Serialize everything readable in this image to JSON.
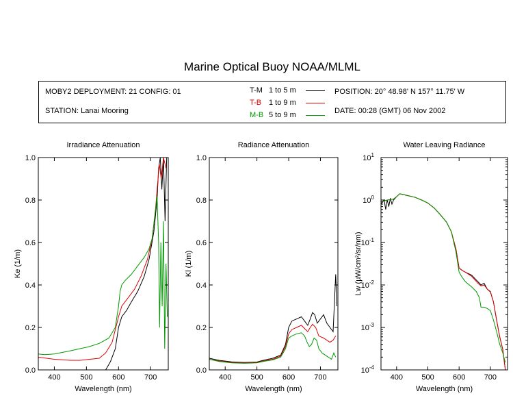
{
  "title": "Marine Optical Buoy NOAA/MLML",
  "info": {
    "deployment": "MOBY2 DEPLOYMENT: 21 CONFIG: 01",
    "station": "STATION: Lanai Mooring",
    "position": "POSITION: 20° 48.98' N   157° 11.75' W",
    "date": "DATE: 00:28 (GMT) 06 Nov 2002",
    "legend": [
      {
        "label": "T-M",
        "range": "1 to 5  m",
        "color": "#000000"
      },
      {
        "label": "T-B",
        "range": "1 to 9  m",
        "color": "#dd0000"
      },
      {
        "label": "M-B",
        "range": "5 to 9  m",
        "color": "#009900"
      }
    ]
  },
  "chart_data": [
    {
      "type": "line",
      "title": "Irradiance Attenuation",
      "xlabel": "Wavelength (nm)",
      "ylabel": "Ke  (1/m)",
      "xlim": [
        350,
        755
      ],
      "ylim": [
        0,
        1
      ],
      "xticks": [
        "400",
        "500",
        "600",
        "700"
      ],
      "yticks": [
        "0.0",
        "0.2",
        "0.4",
        "0.6",
        "0.8",
        "1.0"
      ],
      "series": [
        {
          "name": "T-M",
          "color": "#000000",
          "points": [
            [
              560,
              0
            ],
            [
              575,
              0.04
            ],
            [
              590,
              0.1
            ],
            [
              600,
              0.2
            ],
            [
              610,
              0.25
            ],
            [
              625,
              0.28
            ],
            [
              640,
              0.32
            ],
            [
              660,
              0.37
            ],
            [
              680,
              0.44
            ],
            [
              695,
              0.52
            ],
            [
              710,
              0.65
            ],
            [
              720,
              0.8
            ],
            [
              725,
              0.95
            ],
            [
              730,
              1.0
            ],
            [
              735,
              0.85
            ],
            [
              740,
              1.0
            ],
            [
              745,
              0.7
            ],
            [
              750,
              1.0
            ]
          ]
        },
        {
          "name": "T-B",
          "color": "#dd0000",
          "points": [
            [
              350,
              0.06
            ],
            [
              400,
              0.05
            ],
            [
              450,
              0.045
            ],
            [
              480,
              0.045
            ],
            [
              510,
              0.05
            ],
            [
              540,
              0.055
            ],
            [
              560,
              0.08
            ],
            [
              580,
              0.13
            ],
            [
              600,
              0.25
            ],
            [
              610,
              0.3
            ],
            [
              630,
              0.34
            ],
            [
              650,
              0.38
            ],
            [
              670,
              0.44
            ],
            [
              690,
              0.52
            ],
            [
              705,
              0.62
            ],
            [
              715,
              0.75
            ],
            [
              722,
              0.88
            ],
            [
              727,
              0.97
            ],
            [
              733,
              0.9
            ],
            [
              740,
              1.0
            ],
            [
              748,
              0.95
            ]
          ]
        },
        {
          "name": "M-B",
          "color": "#009900",
          "points": [
            [
              350,
              0.075
            ],
            [
              370,
              0.072
            ],
            [
              400,
              0.075
            ],
            [
              450,
              0.09
            ],
            [
              480,
              0.1
            ],
            [
              510,
              0.11
            ],
            [
              540,
              0.125
            ],
            [
              570,
              0.15
            ],
            [
              590,
              0.2
            ],
            [
              600,
              0.3
            ],
            [
              605,
              0.37
            ],
            [
              610,
              0.4
            ],
            [
              620,
              0.42
            ],
            [
              640,
              0.45
            ],
            [
              660,
              0.49
            ],
            [
              680,
              0.53
            ],
            [
              695,
              0.57
            ],
            [
              705,
              0.62
            ],
            [
              715,
              0.75
            ],
            [
              720,
              0.82
            ],
            [
              725,
              0.6
            ],
            [
              728,
              0.2
            ],
            [
              732,
              0.6
            ],
            [
              736,
              0.3
            ],
            [
              740,
              0.7
            ],
            [
              744,
              0.1
            ],
            [
              748,
              0.5
            ],
            [
              752,
              0.25
            ]
          ]
        }
      ]
    },
    {
      "type": "line",
      "title": "Radiance Attenuation",
      "xlabel": "Wavelength (nm)",
      "ylabel": "Kl  (1/m)",
      "xlim": [
        350,
        755
      ],
      "ylim": [
        0,
        1
      ],
      "xticks": [
        "400",
        "500",
        "600",
        "700"
      ],
      "yticks": [
        "0.0",
        "0.2",
        "0.4",
        "0.6",
        "0.8",
        "1.0"
      ],
      "series": [
        {
          "name": "T-M",
          "color": "#000000",
          "points": [
            [
              350,
              0.055
            ],
            [
              380,
              0.045
            ],
            [
              420,
              0.038
            ],
            [
              460,
              0.035
            ],
            [
              500,
              0.037
            ],
            [
              520,
              0.045
            ],
            [
              550,
              0.055
            ],
            [
              575,
              0.07
            ],
            [
              590,
              0.12
            ],
            [
              600,
              0.2
            ],
            [
              610,
              0.23
            ],
            [
              625,
              0.24
            ],
            [
              640,
              0.25
            ],
            [
              650,
              0.23
            ],
            [
              660,
              0.21
            ],
            [
              668,
              0.24
            ],
            [
              675,
              0.27
            ],
            [
              682,
              0.26
            ],
            [
              690,
              0.22
            ],
            [
              700,
              0.24
            ],
            [
              710,
              0.26
            ],
            [
              720,
              0.22
            ],
            [
              730,
              0.2
            ],
            [
              740,
              0.18
            ],
            [
              745,
              0.35
            ],
            [
              748,
              0.45
            ],
            [
              752,
              0.3
            ]
          ]
        },
        {
          "name": "T-B",
          "color": "#dd0000",
          "points": [
            [
              350,
              0.05
            ],
            [
              380,
              0.042
            ],
            [
              420,
              0.035
            ],
            [
              460,
              0.033
            ],
            [
              500,
              0.035
            ],
            [
              520,
              0.042
            ],
            [
              550,
              0.05
            ],
            [
              575,
              0.065
            ],
            [
              590,
              0.11
            ],
            [
              600,
              0.17
            ],
            [
              610,
              0.19
            ],
            [
              625,
              0.2
            ],
            [
              640,
              0.21
            ],
            [
              650,
              0.195
            ],
            [
              660,
              0.18
            ],
            [
              668,
              0.2
            ],
            [
              675,
              0.215
            ],
            [
              685,
              0.2
            ],
            [
              695,
              0.16
            ],
            [
              710,
              0.15
            ],
            [
              720,
              0.14
            ],
            [
              730,
              0.13
            ],
            [
              740,
              0.14
            ],
            [
              748,
              0.16
            ]
          ]
        },
        {
          "name": "M-B",
          "color": "#009900",
          "points": [
            [
              350,
              0.05
            ],
            [
              380,
              0.04
            ],
            [
              420,
              0.033
            ],
            [
              460,
              0.031
            ],
            [
              500,
              0.033
            ],
            [
              520,
              0.04
            ],
            [
              550,
              0.047
            ],
            [
              575,
              0.06
            ],
            [
              590,
              0.1
            ],
            [
              600,
              0.15
            ],
            [
              610,
              0.16
            ],
            [
              625,
              0.17
            ],
            [
              640,
              0.175
            ],
            [
              650,
              0.16
            ],
            [
              658,
              0.13
            ],
            [
              665,
              0.11
            ],
            [
              672,
              0.12
            ],
            [
              680,
              0.15
            ],
            [
              688,
              0.14
            ],
            [
              695,
              0.1
            ],
            [
              705,
              0.08
            ],
            [
              715,
              0.07
            ],
            [
              725,
              0.06
            ],
            [
              735,
              0.05
            ],
            [
              742,
              0.08
            ],
            [
              748,
              0.06
            ]
          ]
        }
      ]
    },
    {
      "type": "line",
      "title": "Water Leaving Radiance",
      "xlabel": "Wavelength (nm)",
      "ylabel": "Lw  (µW/cm²/sr/nm)",
      "yscale": "log",
      "xlim": [
        350,
        755
      ],
      "ylim": [
        0.0001,
        10
      ],
      "xticks": [
        "400",
        "500",
        "600",
        "700"
      ],
      "ytick_values": [
        0.0001,
        0.001,
        0.01,
        0.1,
        1,
        10
      ],
      "ytick_exponents": [
        "-4",
        "-3",
        "-2",
        "-1",
        "0",
        "1"
      ],
      "series": [
        {
          "name": "T-M",
          "color": "#000000",
          "points": [
            [
              350,
              0.8
            ],
            [
              360,
              1.0
            ],
            [
              365,
              0.6
            ],
            [
              370,
              1.0
            ],
            [
              375,
              0.7
            ],
            [
              380,
              1.1
            ],
            [
              385,
              0.8
            ],
            [
              390,
              1.0
            ],
            [
              400,
              1.2
            ],
            [
              410,
              1.4
            ],
            [
              420,
              1.35
            ],
            [
              440,
              1.25
            ],
            [
              460,
              1.15
            ],
            [
              480,
              1.0
            ],
            [
              500,
              0.85
            ],
            [
              520,
              0.65
            ],
            [
              540,
              0.45
            ],
            [
              560,
              0.3
            ],
            [
              575,
              0.18
            ],
            [
              590,
              0.07
            ],
            [
              600,
              0.025
            ],
            [
              610,
              0.022
            ],
            [
              620,
              0.02
            ],
            [
              640,
              0.017
            ],
            [
              660,
              0.012
            ],
            [
              670,
              0.01
            ],
            [
              680,
              0.011
            ],
            [
              690,
              0.008
            ],
            [
              700,
              0.007
            ],
            [
              710,
              0.004
            ],
            [
              720,
              0.0015
            ],
            [
              730,
              0.0006
            ],
            [
              740,
              0.0003
            ],
            [
              748,
              0.0001
            ]
          ]
        },
        {
          "name": "T-B",
          "color": "#dd0000",
          "points": [
            [
              350,
              0.9
            ],
            [
              370,
              1.0
            ],
            [
              390,
              1.05
            ],
            [
              400,
              1.2
            ],
            [
              410,
              1.4
            ],
            [
              420,
              1.35
            ],
            [
              440,
              1.25
            ],
            [
              460,
              1.15
            ],
            [
              480,
              1.0
            ],
            [
              500,
              0.85
            ],
            [
              520,
              0.65
            ],
            [
              540,
              0.45
            ],
            [
              560,
              0.3
            ],
            [
              575,
              0.18
            ],
            [
              590,
              0.07
            ],
            [
              600,
              0.025
            ],
            [
              610,
              0.022
            ],
            [
              620,
              0.02
            ],
            [
              640,
              0.016
            ],
            [
              660,
              0.011
            ],
            [
              670,
              0.0095
            ],
            [
              680,
              0.01
            ],
            [
              690,
              0.008
            ],
            [
              700,
              0.0068
            ],
            [
              710,
              0.004
            ],
            [
              720,
              0.0015
            ],
            [
              730,
              0.0006
            ],
            [
              740,
              0.0003
            ],
            [
              748,
              0.0001
            ]
          ]
        },
        {
          "name": "M-B",
          "color": "#009900",
          "points": [
            [
              350,
              0.9
            ],
            [
              370,
              1.0
            ],
            [
              390,
              1.05
            ],
            [
              400,
              1.2
            ],
            [
              410,
              1.4
            ],
            [
              420,
              1.35
            ],
            [
              440,
              1.25
            ],
            [
              460,
              1.15
            ],
            [
              480,
              1.0
            ],
            [
              500,
              0.85
            ],
            [
              520,
              0.65
            ],
            [
              540,
              0.45
            ],
            [
              560,
              0.3
            ],
            [
              575,
              0.18
            ],
            [
              590,
              0.06
            ],
            [
              600,
              0.02
            ],
            [
              610,
              0.015
            ],
            [
              620,
              0.012
            ],
            [
              640,
              0.009
            ],
            [
              655,
              0.007
            ],
            [
              665,
              0.005
            ],
            [
              670,
              0.003
            ],
            [
              680,
              0.003
            ],
            [
              690,
              0.0028
            ],
            [
              700,
              0.0025
            ],
            [
              710,
              0.0015
            ],
            [
              720,
              0.0008
            ],
            [
              730,
              0.0004
            ],
            [
              740,
              0.00025
            ],
            [
              748,
              0.00015
            ]
          ]
        }
      ]
    }
  ]
}
